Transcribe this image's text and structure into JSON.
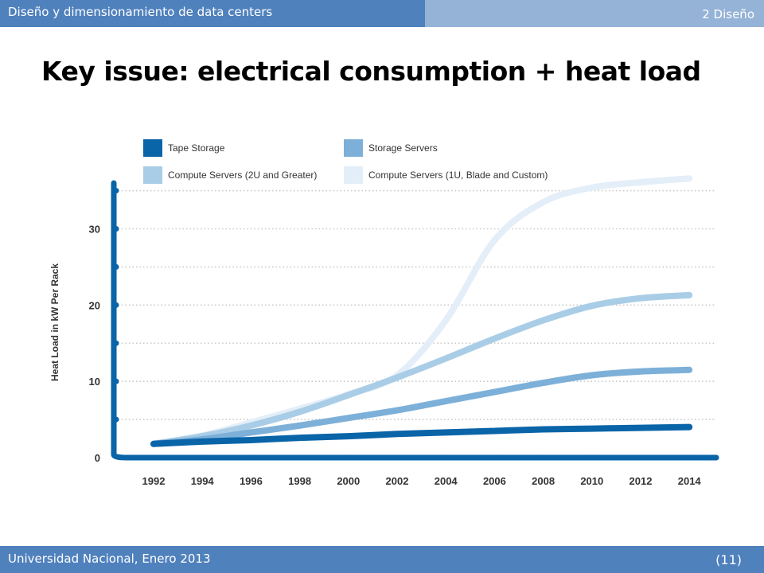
{
  "header": {
    "course_title": "Diseño y dimensionamiento de data centers",
    "section": "2 Diseño"
  },
  "slide": {
    "title": "Key issue: electrical consumption + heat load"
  },
  "footer": {
    "institution": "Universidad Nacional, Enero 2013",
    "page": "(11)"
  },
  "colors": {
    "header_left": "#4f81bd",
    "header_right": "#95b3d7",
    "axis": "#0a64a8"
  },
  "chart_data": {
    "type": "line",
    "title": "",
    "xlabel": "",
    "ylabel": "Heat Load in kW Per Rack",
    "x": [
      1992,
      1994,
      1996,
      1998,
      2000,
      2002,
      2004,
      2006,
      2008,
      2010,
      2012,
      2014
    ],
    "x_ticks": [
      "1992",
      "1994",
      "1996",
      "1998",
      "2000",
      "2002",
      "2004",
      "2006",
      "2008",
      "2010",
      "2012",
      "2014"
    ],
    "y_ticks": [
      "0",
      "10",
      "20",
      "30"
    ],
    "y_tick_values": [
      0,
      10,
      20,
      30
    ],
    "y_dot_values": [
      5,
      15,
      25,
      35
    ],
    "ylim": [
      0,
      36
    ],
    "xlim": [
      1991,
      2015
    ],
    "grid": true,
    "legend_position": "top",
    "series": [
      {
        "name": "Tape Storage",
        "color": "#0a64a8",
        "values": [
          1.8,
          2.1,
          2.3,
          2.6,
          2.8,
          3.1,
          3.3,
          3.5,
          3.7,
          3.8,
          3.9,
          4.0
        ]
      },
      {
        "name": "Storage Servers",
        "color": "#7db0d8",
        "values": [
          1.8,
          2.4,
          3.3,
          4.2,
          5.2,
          6.2,
          7.4,
          8.6,
          9.8,
          10.8,
          11.3,
          11.5
        ]
      },
      {
        "name": "Compute Servers (2U and Greater)",
        "color": "#a9cde6",
        "values": [
          1.8,
          2.8,
          4.2,
          6.0,
          8.2,
          10.5,
          13.0,
          15.6,
          18.0,
          19.9,
          20.9,
          21.3
        ]
      },
      {
        "name": "Compute Servers (1U, Blade and Custom)",
        "color": "#e3eef8",
        "values": [
          1.8,
          2.9,
          4.6,
          6.4,
          8.3,
          10.8,
          18.0,
          28.5,
          33.5,
          35.4,
          36.1,
          36.6
        ]
      }
    ]
  }
}
